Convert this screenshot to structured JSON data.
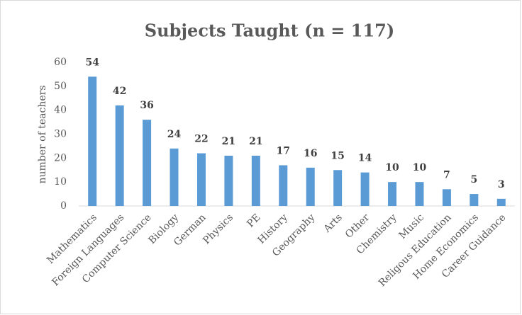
{
  "chart_data": {
    "type": "bar",
    "title": "Subjects Taught (n = 117)",
    "y_label": "number of teachers",
    "categories": [
      "Mathematics",
      "Foreign Languages",
      "Computer Science",
      "Biology",
      "German",
      "Physics",
      "PE",
      "History",
      "Geography",
      "Arts",
      "Other",
      "Chemistry",
      "Music",
      "Religous Education",
      "Home Economics",
      "Career Guidance"
    ],
    "values": [
      54,
      42,
      36,
      24,
      22,
      21,
      21,
      17,
      16,
      15,
      14,
      10,
      10,
      7,
      5,
      3
    ],
    "color": "#5b9bd5",
    "ylim": [
      0,
      60
    ],
    "yticks": [
      0,
      10,
      20,
      30,
      40,
      50,
      60
    ],
    "grid": false
  }
}
